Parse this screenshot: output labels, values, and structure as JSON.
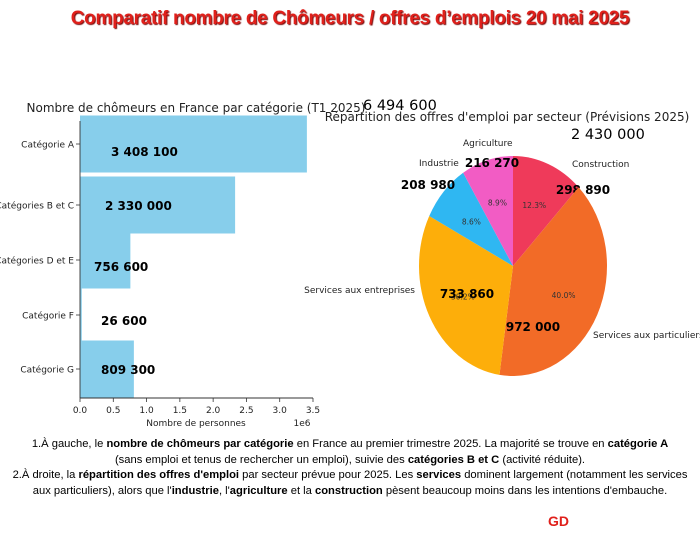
{
  "title": "Comparatif nombre de Chômeurs / offres d’emplois 20 mai 2025",
  "chart_data": [
    {
      "type": "bar",
      "orientation": "horizontal",
      "title": "Nombre de chômeurs en France par catégorie (T1 2025)",
      "total_label": "6 494 600",
      "xlabel": "Nombre de personnes",
      "axis_multiplier": "1e6",
      "xlim": [
        0,
        3.5
      ],
      "xticks": [
        "0.0",
        "0.5",
        "1.0",
        "1.5",
        "2.0",
        "2.5",
        "3.0",
        "3.5"
      ],
      "categories": [
        "Catégorie A",
        "Catégories B et C",
        "Catégories D et E",
        "Catégorie F",
        "Catégorie G"
      ],
      "values": [
        3408100,
        2330000,
        756600,
        26600,
        809300
      ],
      "value_labels": [
        "3 408 100",
        "2 330 000",
        "756 600",
        "26 600",
        "809 300"
      ],
      "color": "#87ceeb"
    },
    {
      "type": "pie",
      "title": "Répartition des offres d'emploi par secteur (Prévisions 2025)",
      "total_label": "2 430 000",
      "slices": [
        {
          "label": "Construction",
          "value": 298890,
          "value_label": "298 890",
          "pct": "12.3%",
          "color": "#ef3a5a"
        },
        {
          "label": "Services aux particuliers",
          "value": 972000,
          "value_label": "972 000",
          "pct": "40.0%",
          "color": "#f26b27"
        },
        {
          "label": "Services aux entreprises",
          "value": 733860,
          "value_label": "733 860",
          "pct": "30.2%",
          "color": "#fdae0a"
        },
        {
          "label": "Industrie",
          "value": 208980,
          "value_label": "208 980",
          "pct": "8.6%",
          "color": "#2fb7f2"
        },
        {
          "label": "Agriculture",
          "value": 216270,
          "value_label": "216 270",
          "pct": "8.9%",
          "color": "#f25cc4"
        }
      ]
    }
  ],
  "caption": {
    "line1": [
      {
        "t": "1.À gauche, le ",
        "b": false
      },
      {
        "t": "nombre de chômeurs par catégorie",
        "b": true
      },
      {
        "t": " en France au premier trimestre 2025. La majorité se trouve en ",
        "b": false
      },
      {
        "t": "catégorie A",
        "b": true
      }
    ],
    "line2": [
      {
        "t": "(sans emploi et tenus de rechercher un emploi), suivie des ",
        "b": false
      },
      {
        "t": "catégories B et C",
        "b": true
      },
      {
        "t": " (activité réduite).",
        "b": false
      }
    ],
    "line3": [
      {
        "t": "2.À droite, la ",
        "b": false
      },
      {
        "t": "répartition des offres d'emploi",
        "b": true
      },
      {
        "t": " par secteur prévue pour 2025. Les ",
        "b": false
      },
      {
        "t": "services",
        "b": true
      },
      {
        "t": " dominent largement (notamment les services aux particuliers), alors que l'",
        "b": false
      },
      {
        "t": "industrie",
        "b": true
      },
      {
        "t": ", l'",
        "b": false
      },
      {
        "t": "agriculture",
        "b": true
      },
      {
        "t": " et la ",
        "b": false
      },
      {
        "t": "construction",
        "b": true
      },
      {
        "t": " pèsent beaucoup moins dans les intentions d'embauche.",
        "b": false
      }
    ]
  },
  "signature": "GD"
}
